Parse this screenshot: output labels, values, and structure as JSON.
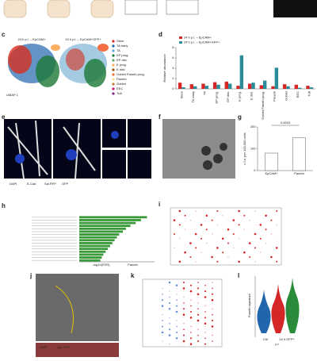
{
  "panel_labels": [
    "c",
    "d",
    "e",
    "f",
    "g",
    "h",
    "i",
    "j",
    "k",
    "l"
  ],
  "c": {
    "titles": [
      "24 h p.i. – EpCAM+",
      "24 h p.i. – EpCAM+GFP+"
    ],
    "axis": "UMAP 1",
    "legend": [
      {
        "name": "Stem",
        "color": "#d7301f"
      },
      {
        "name": "TA early",
        "color": "#2166ac"
      },
      {
        "name": "TA",
        "color": "#67a9cf"
      },
      {
        "name": "EP prog.",
        "color": "#1b7837"
      },
      {
        "name": "EP dist.",
        "color": "#5aae61"
      },
      {
        "name": "E prog.",
        "color": "#fdae61"
      },
      {
        "name": "E dist.",
        "color": "#8c510a"
      },
      {
        "name": "Goblet Paneth prog.",
        "color": "#f46d43"
      },
      {
        "name": "Paneth",
        "color": "#fee090"
      },
      {
        "name": "Goblet",
        "color": "#bf812d"
      },
      {
        "name": "EEC",
        "color": "#c51b7d"
      },
      {
        "name": "Tuft",
        "color": "#762a83"
      }
    ]
  },
  "d": {
    "chart_data": {
      "type": "bar",
      "ylabel": "Relative abundance",
      "categories": [
        "Stem",
        "TA early",
        "TA",
        "EP prog.",
        "EP dist.",
        "E prog.",
        "E dist.",
        "Goblet Paneth prog.",
        "Paneth",
        "Goblet",
        "EEC",
        "Tuft"
      ],
      "series": [
        {
          "name": "24 h p.i. – EpCAM+",
          "color": "#d62728",
          "values": [
            1.2,
            0.9,
            1.0,
            1.3,
            1.4,
            0.6,
            1.0,
            0.7,
            0.5,
            0.9,
            0.8,
            0.6
          ]
        },
        {
          "name": "24 h p.i. – EpCAM+GFP+",
          "color": "#2a8c99",
          "values": [
            0.3,
            0.5,
            0.6,
            0.8,
            1.0,
            6.5,
            1.2,
            1.6,
            4.1,
            0.5,
            0.2,
            0.3
          ]
        }
      ],
      "ylim": [
        0,
        8
      ],
      "yticks": [
        0,
        2,
        4,
        6,
        8
      ]
    }
  },
  "e": {
    "legend": [
      "DAPI",
      "E-Cad",
      "Sal RFP",
      "GFP"
    ]
  },
  "g": {
    "chart_data": {
      "type": "bar",
      "ylabel": "c.f.u. per 100,000 cells",
      "categories": [
        "EpCAM+",
        "Paneth"
      ],
      "values": [
        80,
        150
      ],
      "color": "#ffffff",
      "p_value": "0.0003",
      "ylim": [
        0,
        200
      ],
      "yticks": [
        0,
        100,
        200
      ]
    }
  },
  "h": {
    "chart_data": {
      "type": "hbar",
      "title": "Paneth",
      "xlabel": "-log10(FDR)",
      "categories": [
        null,
        null,
        null,
        null,
        null,
        null,
        null,
        null,
        null,
        null,
        null,
        null,
        null,
        null,
        null,
        null
      ],
      "values": [
        9,
        8.2,
        7.5,
        6.8,
        6.2,
        5.8,
        5.3,
        5,
        4.7,
        4.4,
        4.1,
        3.8,
        3.5,
        3.2,
        3,
        2.8
      ],
      "color": "#3a9a3a",
      "xlim": [
        0,
        10
      ]
    }
  },
  "j": {
    "legend": [
      "DAPI",
      "Lyn-GFP"
    ]
  },
  "l": {
    "ylabel": "Paneth signature",
    "categories": [
      "Ctrl",
      "24 h GFP+"
    ],
    "sublabel": "p.i."
  }
}
